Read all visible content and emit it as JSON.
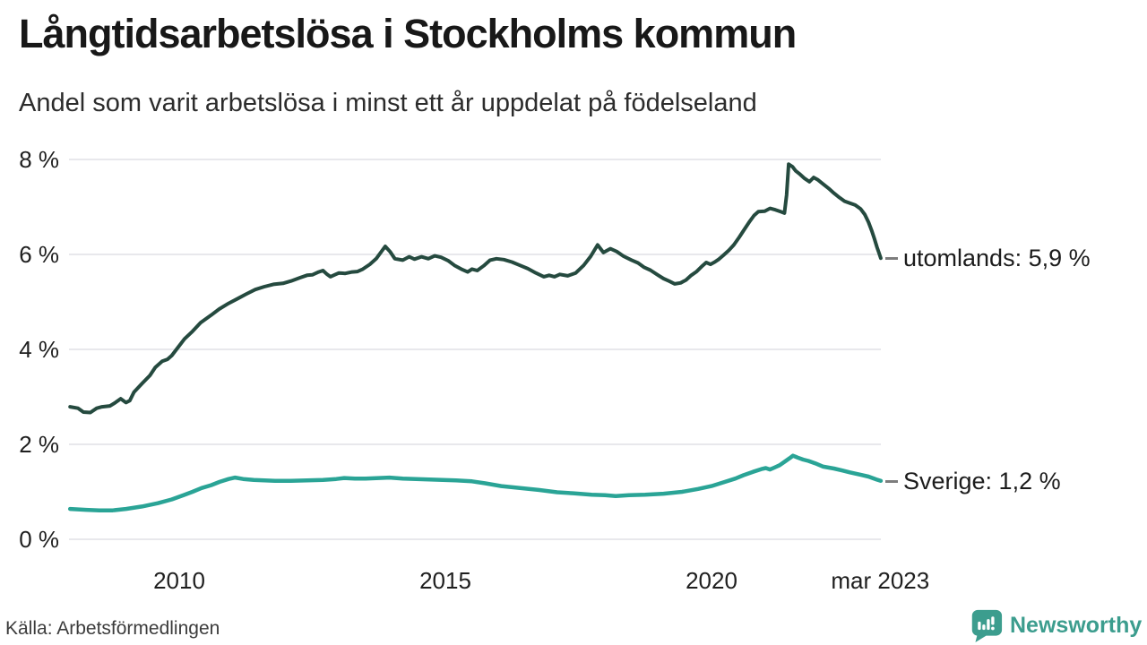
{
  "header": {
    "title": "Långtidsarbetslösa i Stockholms kommun",
    "subtitle": "Andel som varit arbetslösa i minst ett år uppdelat på födelseland"
  },
  "footer": {
    "source": "Källa: Arbetsförmedlingen",
    "brand": "Newsworthy",
    "brand_icon": "bar-chart-speech-bubble-icon",
    "brand_color": "#3c9d8e"
  },
  "chart_data": {
    "type": "line",
    "title": "Långtidsarbetslösa i Stockholms kommun",
    "subtitle": "Andel som varit arbetslösa i minst ett år uppdelat på födelseland",
    "grid": "horizontal-only",
    "gridline_color": "#e8e8ec",
    "x_axis": {
      "range": [
        2007.95,
        2023.18
      ],
      "ticks": [
        {
          "x": 2010,
          "label": "2010"
        },
        {
          "x": 2015,
          "label": "2015"
        },
        {
          "x": 2020,
          "label": "2020"
        },
        {
          "x": 2023.17,
          "label": "mar 2023"
        }
      ]
    },
    "y_axis": {
      "range": [
        0,
        8
      ],
      "unit": "%",
      "ticks": [
        {
          "v": 0,
          "label": "0 %"
        },
        {
          "v": 2,
          "label": "2 %"
        },
        {
          "v": 4,
          "label": "4 %"
        },
        {
          "v": 6,
          "label": "6 %"
        },
        {
          "v": 8,
          "label": "8 %"
        }
      ]
    },
    "legend_position": "end-of-line-labels",
    "series": [
      {
        "name": "utomlands",
        "end_label": "utomlands: 5,9 %",
        "last_value_display": "5,9 %",
        "color": "#254a3f",
        "points": [
          [
            2007.95,
            2.79
          ],
          [
            2008.1,
            2.76
          ],
          [
            2008.2,
            2.68
          ],
          [
            2008.33,
            2.67
          ],
          [
            2008.45,
            2.76
          ],
          [
            2008.55,
            2.79
          ],
          [
            2008.7,
            2.81
          ],
          [
            2008.8,
            2.88
          ],
          [
            2008.9,
            2.96
          ],
          [
            2009.0,
            2.88
          ],
          [
            2009.07,
            2.92
          ],
          [
            2009.15,
            3.1
          ],
          [
            2009.3,
            3.28
          ],
          [
            2009.45,
            3.45
          ],
          [
            2009.55,
            3.62
          ],
          [
            2009.68,
            3.75
          ],
          [
            2009.78,
            3.79
          ],
          [
            2009.86,
            3.87
          ],
          [
            2009.97,
            4.03
          ],
          [
            2010.1,
            4.22
          ],
          [
            2010.25,
            4.38
          ],
          [
            2010.4,
            4.56
          ],
          [
            2010.6,
            4.72
          ],
          [
            2010.75,
            4.85
          ],
          [
            2010.93,
            4.97
          ],
          [
            2011.1,
            5.07
          ],
          [
            2011.25,
            5.16
          ],
          [
            2011.43,
            5.26
          ],
          [
            2011.6,
            5.32
          ],
          [
            2011.77,
            5.37
          ],
          [
            2011.95,
            5.39
          ],
          [
            2012.1,
            5.44
          ],
          [
            2012.27,
            5.51
          ],
          [
            2012.4,
            5.56
          ],
          [
            2012.5,
            5.57
          ],
          [
            2012.62,
            5.63
          ],
          [
            2012.7,
            5.66
          ],
          [
            2012.78,
            5.58
          ],
          [
            2012.84,
            5.53
          ],
          [
            2012.92,
            5.57
          ],
          [
            2013.0,
            5.61
          ],
          [
            2013.12,
            5.6
          ],
          [
            2013.25,
            5.63
          ],
          [
            2013.35,
            5.64
          ],
          [
            2013.45,
            5.69
          ],
          [
            2013.58,
            5.79
          ],
          [
            2013.7,
            5.91
          ],
          [
            2013.87,
            6.17
          ],
          [
            2013.96,
            6.06
          ],
          [
            2014.05,
            5.91
          ],
          [
            2014.2,
            5.88
          ],
          [
            2014.32,
            5.95
          ],
          [
            2014.42,
            5.9
          ],
          [
            2014.55,
            5.95
          ],
          [
            2014.68,
            5.91
          ],
          [
            2014.8,
            5.97
          ],
          [
            2014.92,
            5.94
          ],
          [
            2015.05,
            5.87
          ],
          [
            2015.17,
            5.77
          ],
          [
            2015.3,
            5.69
          ],
          [
            2015.42,
            5.63
          ],
          [
            2015.5,
            5.69
          ],
          [
            2015.6,
            5.66
          ],
          [
            2015.72,
            5.76
          ],
          [
            2015.84,
            5.88
          ],
          [
            2015.96,
            5.91
          ],
          [
            2016.1,
            5.89
          ],
          [
            2016.25,
            5.84
          ],
          [
            2016.4,
            5.77
          ],
          [
            2016.55,
            5.7
          ],
          [
            2016.7,
            5.61
          ],
          [
            2016.85,
            5.53
          ],
          [
            2016.95,
            5.56
          ],
          [
            2017.05,
            5.53
          ],
          [
            2017.15,
            5.58
          ],
          [
            2017.3,
            5.55
          ],
          [
            2017.45,
            5.61
          ],
          [
            2017.6,
            5.77
          ],
          [
            2017.73,
            5.96
          ],
          [
            2017.86,
            6.2
          ],
          [
            2017.97,
            6.04
          ],
          [
            2018.1,
            6.12
          ],
          [
            2018.22,
            6.06
          ],
          [
            2018.35,
            5.96
          ],
          [
            2018.5,
            5.88
          ],
          [
            2018.62,
            5.82
          ],
          [
            2018.73,
            5.73
          ],
          [
            2018.85,
            5.67
          ],
          [
            2019.0,
            5.56
          ],
          [
            2019.1,
            5.49
          ],
          [
            2019.2,
            5.44
          ],
          [
            2019.31,
            5.38
          ],
          [
            2019.42,
            5.4
          ],
          [
            2019.52,
            5.46
          ],
          [
            2019.62,
            5.56
          ],
          [
            2019.72,
            5.64
          ],
          [
            2019.83,
            5.76
          ],
          [
            2019.9,
            5.83
          ],
          [
            2019.98,
            5.79
          ],
          [
            2020.06,
            5.84
          ],
          [
            2020.14,
            5.9
          ],
          [
            2020.22,
            5.98
          ],
          [
            2020.32,
            6.08
          ],
          [
            2020.42,
            6.2
          ],
          [
            2020.52,
            6.36
          ],
          [
            2020.62,
            6.53
          ],
          [
            2020.72,
            6.7
          ],
          [
            2020.8,
            6.82
          ],
          [
            2020.88,
            6.9
          ],
          [
            2021.0,
            6.91
          ],
          [
            2021.1,
            6.97
          ],
          [
            2021.2,
            6.94
          ],
          [
            2021.3,
            6.9
          ],
          [
            2021.37,
            6.87
          ],
          [
            2021.41,
            7.25
          ],
          [
            2021.45,
            7.9
          ],
          [
            2021.52,
            7.85
          ],
          [
            2021.58,
            7.76
          ],
          [
            2021.65,
            7.7
          ],
          [
            2021.75,
            7.6
          ],
          [
            2021.84,
            7.53
          ],
          [
            2021.92,
            7.62
          ],
          [
            2022.0,
            7.57
          ],
          [
            2022.1,
            7.48
          ],
          [
            2022.2,
            7.39
          ],
          [
            2022.3,
            7.29
          ],
          [
            2022.4,
            7.2
          ],
          [
            2022.5,
            7.12
          ],
          [
            2022.6,
            7.08
          ],
          [
            2022.7,
            7.04
          ],
          [
            2022.8,
            6.96
          ],
          [
            2022.88,
            6.84
          ],
          [
            2022.95,
            6.68
          ],
          [
            2023.01,
            6.5
          ],
          [
            2023.06,
            6.33
          ],
          [
            2023.11,
            6.15
          ],
          [
            2023.15,
            6.02
          ],
          [
            2023.18,
            5.92
          ]
        ]
      },
      {
        "name": "Sverige",
        "end_label": "Sverige: 1,2 %",
        "last_value_display": "1,2 %",
        "color": "#2aa496",
        "points": [
          [
            2007.95,
            0.64
          ],
          [
            2008.25,
            0.62
          ],
          [
            2008.5,
            0.61
          ],
          [
            2008.75,
            0.61
          ],
          [
            2009.0,
            0.64
          ],
          [
            2009.3,
            0.69
          ],
          [
            2009.6,
            0.76
          ],
          [
            2009.86,
            0.84
          ],
          [
            2010.08,
            0.93
          ],
          [
            2010.25,
            1.0
          ],
          [
            2010.42,
            1.08
          ],
          [
            2010.6,
            1.14
          ],
          [
            2010.76,
            1.21
          ],
          [
            2010.93,
            1.27
          ],
          [
            2011.05,
            1.3
          ],
          [
            2011.2,
            1.27
          ],
          [
            2011.4,
            1.25
          ],
          [
            2011.6,
            1.24
          ],
          [
            2011.8,
            1.23
          ],
          [
            2012.1,
            1.23
          ],
          [
            2012.4,
            1.24
          ],
          [
            2012.7,
            1.25
          ],
          [
            2012.95,
            1.27
          ],
          [
            2013.1,
            1.29
          ],
          [
            2013.3,
            1.28
          ],
          [
            2013.5,
            1.28
          ],
          [
            2013.75,
            1.29
          ],
          [
            2013.95,
            1.3
          ],
          [
            2014.2,
            1.28
          ],
          [
            2014.45,
            1.27
          ],
          [
            2014.7,
            1.26
          ],
          [
            2014.95,
            1.25
          ],
          [
            2015.2,
            1.24
          ],
          [
            2015.5,
            1.22
          ],
          [
            2015.75,
            1.18
          ],
          [
            2016.05,
            1.12
          ],
          [
            2016.4,
            1.08
          ],
          [
            2016.75,
            1.04
          ],
          [
            2017.1,
            0.99
          ],
          [
            2017.4,
            0.97
          ],
          [
            2017.75,
            0.94
          ],
          [
            2018.0,
            0.93
          ],
          [
            2018.2,
            0.91
          ],
          [
            2018.45,
            0.93
          ],
          [
            2018.75,
            0.94
          ],
          [
            2019.1,
            0.96
          ],
          [
            2019.45,
            1.0
          ],
          [
            2019.75,
            1.06
          ],
          [
            2020.0,
            1.12
          ],
          [
            2020.2,
            1.19
          ],
          [
            2020.45,
            1.28
          ],
          [
            2020.6,
            1.35
          ],
          [
            2020.78,
            1.42
          ],
          [
            2020.94,
            1.48
          ],
          [
            2021.02,
            1.5
          ],
          [
            2021.1,
            1.47
          ],
          [
            2021.18,
            1.51
          ],
          [
            2021.28,
            1.56
          ],
          [
            2021.38,
            1.64
          ],
          [
            2021.47,
            1.71
          ],
          [
            2021.53,
            1.76
          ],
          [
            2021.62,
            1.72
          ],
          [
            2021.72,
            1.68
          ],
          [
            2021.82,
            1.65
          ],
          [
            2021.95,
            1.6
          ],
          [
            2022.1,
            1.53
          ],
          [
            2022.3,
            1.49
          ],
          [
            2022.45,
            1.45
          ],
          [
            2022.6,
            1.41
          ],
          [
            2022.8,
            1.36
          ],
          [
            2022.95,
            1.32
          ],
          [
            2023.1,
            1.26
          ],
          [
            2023.18,
            1.23
          ]
        ]
      }
    ]
  }
}
